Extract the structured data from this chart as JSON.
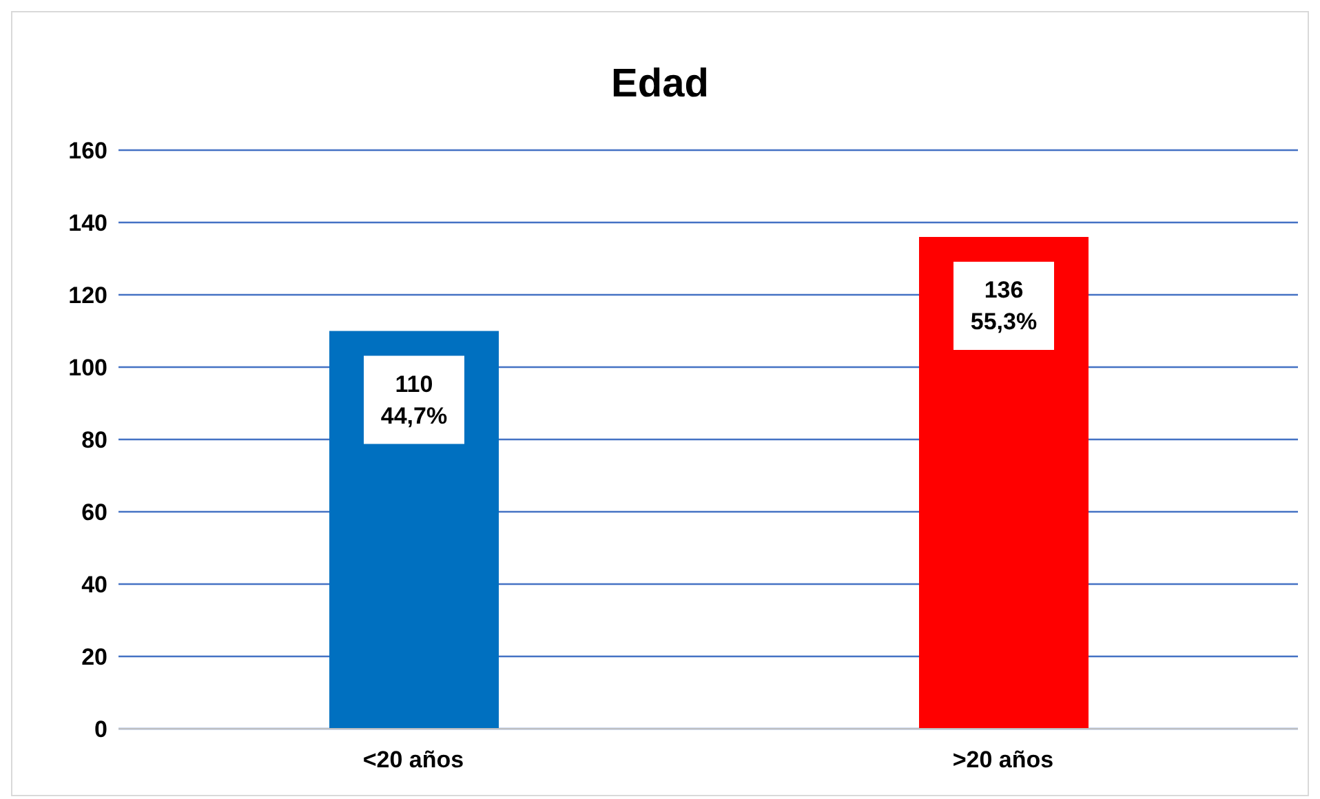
{
  "chart_data": {
    "type": "bar",
    "title": "Edad",
    "categories": [
      "<20 años",
      ">20 años"
    ],
    "values": [
      110,
      136
    ],
    "colors": [
      "#0070c0",
      "#ff0000"
    ],
    "value_labels": [
      "110\n44,7%",
      "136\n55,3%"
    ],
    "ylim": [
      0,
      160
    ],
    "yticks": [
      0,
      20,
      40,
      60,
      80,
      100,
      120,
      140,
      160
    ],
    "grid": "y"
  }
}
